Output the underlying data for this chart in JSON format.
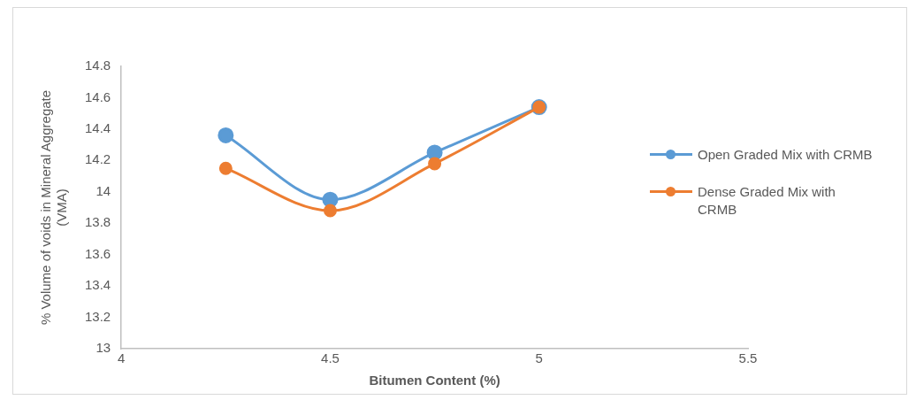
{
  "chart_data": {
    "type": "line",
    "xlabel": "Bitumen Content (%)",
    "ylabel": "% Volume of voids in Mineral Aggregate (VMA)",
    "x": [
      4.25,
      4.5,
      4.75,
      5
    ],
    "series": [
      {
        "name": "Open Graded Mix with CRMB",
        "color": "#5b9bd5",
        "values": [
          14.36,
          13.95,
          14.25,
          14.54
        ]
      },
      {
        "name": "Dense Graded Mix with CRMB",
        "color": "#ed7d31",
        "values": [
          14.15,
          13.88,
          14.18,
          14.54
        ]
      }
    ],
    "xlim": [
      4,
      5.5
    ],
    "xticks": [
      4,
      4.5,
      5,
      5.5
    ],
    "ylim": [
      13,
      14.8
    ],
    "yticks": [
      13,
      13.2,
      13.4,
      13.6,
      13.8,
      14,
      14.2,
      14.4,
      14.6,
      14.8
    ],
    "grid": false,
    "legend": "right",
    "marker": "circle",
    "line_style": "solid"
  }
}
